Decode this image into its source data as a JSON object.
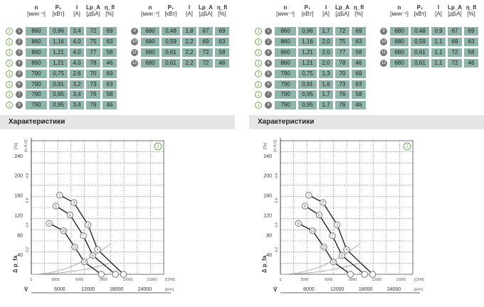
{
  "headers": {
    "n": "n",
    "n_unit": "[мин⁻¹]",
    "p1": "P₁",
    "p1_unit": "[кВт]",
    "i": "I",
    "i_unit": "[А]",
    "lpa": "Lp_A",
    "lpa_unit": "[дБА]",
    "eta": "η_fl",
    "eta_unit": "[%]"
  },
  "section_title": "Характеристики",
  "tables": {
    "left": {
      "rows_a": [
        {
          "m": "1",
          "k": "1",
          "n": "860",
          "p": "0,96",
          "i": "3,4",
          "l": "72",
          "e": "69"
        },
        {
          "m": "1",
          "k": "2",
          "n": "860",
          "p": "1,16",
          "i": "4,0",
          "l": "75",
          "e": "63"
        },
        {
          "m": "1",
          "k": "3",
          "n": "860",
          "p": "1,21",
          "i": "4,0",
          "l": "77",
          "e": "58"
        },
        {
          "m": "1",
          "k": "4",
          "n": "860",
          "p": "1,21",
          "i": "4,0",
          "l": "78",
          "e": "46"
        },
        {
          "m": "1",
          "k": "5",
          "n": "790",
          "p": "0,75",
          "i": "2,6",
          "l": "70",
          "e": "69"
        },
        {
          "m": "1",
          "k": "6",
          "n": "790",
          "p": "0,91",
          "i": "3,2",
          "l": "73",
          "e": "63"
        },
        {
          "m": "1",
          "k": "7",
          "n": "790",
          "p": "0,95",
          "i": "3,4",
          "l": "76",
          "e": "58"
        },
        {
          "m": "1",
          "k": "8",
          "n": "790",
          "p": "0,95",
          "i": "3,4",
          "l": "76",
          "e": "46"
        }
      ],
      "rows_b": [
        {
          "k": "9",
          "n": "680",
          "p": "0,48",
          "i": "1,8",
          "l": "67",
          "e": "69"
        },
        {
          "k": "10",
          "n": "680",
          "p": "0,59",
          "i": "2,2",
          "l": "69",
          "e": "63"
        },
        {
          "k": "11",
          "n": "680",
          "p": "0,61",
          "i": "2,2",
          "l": "72",
          "e": "58"
        },
        {
          "k": "12",
          "n": "680",
          "p": "0,61",
          "i": "2,2",
          "l": "72",
          "e": "46"
        }
      ]
    },
    "right": {
      "rows_a": [
        {
          "m": "2",
          "k": "1",
          "n": "860",
          "p": "0,96",
          "i": "1,7",
          "l": "72",
          "e": "69"
        },
        {
          "m": "2",
          "k": "2",
          "n": "860",
          "p": "1,16",
          "i": "2,0",
          "l": "75",
          "e": "63"
        },
        {
          "m": "2",
          "k": "3",
          "n": "860",
          "p": "1,21",
          "i": "2,0",
          "l": "77",
          "e": "58"
        },
        {
          "m": "2",
          "k": "4",
          "n": "860",
          "p": "1,21",
          "i": "2,0",
          "l": "78",
          "e": "46"
        },
        {
          "m": "2",
          "k": "5",
          "n": "790",
          "p": "0,75",
          "i": "1,3",
          "l": "70",
          "e": "69"
        },
        {
          "m": "2",
          "k": "6",
          "n": "790",
          "p": "0,91",
          "i": "1,6",
          "l": "73",
          "e": "63"
        },
        {
          "m": "2",
          "k": "7",
          "n": "790",
          "p": "0,95",
          "i": "1,7",
          "l": "76",
          "e": "58"
        },
        {
          "m": "2",
          "k": "8",
          "n": "790",
          "p": "0,95",
          "i": "1,7",
          "l": "76",
          "e": "46"
        }
      ],
      "rows_b": [
        {
          "k": "9",
          "n": "680",
          "p": "0,48",
          "i": "0,9",
          "l": "67",
          "e": "69"
        },
        {
          "k": "10",
          "n": "680",
          "p": "0,59",
          "i": "1,1",
          "l": "69",
          "e": "63"
        },
        {
          "k": "11",
          "n": "680",
          "p": "0,61",
          "i": "1,1",
          "l": "72",
          "e": "58"
        },
        {
          "k": "12",
          "n": "680",
          "p": "0,61",
          "i": "1,1",
          "l": "72",
          "e": "46"
        }
      ]
    }
  },
  "chart_data": [
    {
      "type": "line",
      "marker": "1",
      "y_label": "Δ p_fa",
      "y_unit": "[Па]",
      "y_unit_alt": "[in H₂O]",
      "x_label": "V̇",
      "x_unit": "[м³/ч]",
      "x_unit_alt": "[CFM]",
      "y_ticks": [
        "40",
        "80",
        "120",
        "160",
        "200",
        "240"
      ],
      "y_alt_ticks": [
        "0,2",
        "0,4",
        "0,6",
        "0,8"
      ],
      "x_ticks": [
        "6000",
        "12000",
        "18000",
        "24000"
      ],
      "x_alt_ticks": [
        "0",
        "3000",
        "6000",
        "9000",
        "12000",
        "15000"
      ],
      "xlim": [
        0,
        28000
      ],
      "ylim": [
        0,
        270
      ],
      "series": [
        {
          "points": [
            [
              6000,
              160
            ],
            [
              9000,
              145
            ],
            [
              12000,
              100
            ],
            [
              14000,
              50
            ],
            [
              19500,
              0
            ]
          ],
          "labels": [
            "1",
            "2",
            "3",
            "4"
          ]
        },
        {
          "points": [
            [
              5200,
              138
            ],
            [
              8200,
              120
            ],
            [
              11000,
              78
            ],
            [
              13000,
              38
            ],
            [
              17800,
              0
            ]
          ],
          "labels": [
            "5",
            "6",
            "7",
            "8"
          ]
        },
        {
          "points": [
            [
              3800,
              103
            ],
            [
              6800,
              88
            ],
            [
              9200,
              55
            ],
            [
              11200,
              25
            ],
            [
              14800,
              0
            ]
          ],
          "labels": [
            "9",
            "10",
            "11",
            "12"
          ]
        }
      ]
    },
    {
      "type": "line",
      "marker": "2",
      "y_label": "Δ p_fa",
      "y_unit": "[Па]",
      "y_unit_alt": "[in H₂O]",
      "x_label": "V̇",
      "x_unit": "[м³/ч]",
      "x_unit_alt": "[CFM]",
      "y_ticks": [
        "40",
        "80",
        "120",
        "160",
        "200",
        "240"
      ],
      "y_alt_ticks": [
        "0,2",
        "0,4",
        "0,6",
        "0,8"
      ],
      "x_ticks": [
        "6000",
        "12000",
        "18000",
        "24000"
      ],
      "x_alt_ticks": [
        "0",
        "3000",
        "6000",
        "9000",
        "12000",
        "15000"
      ],
      "xlim": [
        0,
        28000
      ],
      "ylim": [
        0,
        270
      ],
      "series": [
        {
          "points": [
            [
              6000,
              160
            ],
            [
              9000,
              145
            ],
            [
              12000,
              100
            ],
            [
              14000,
              50
            ],
            [
              19500,
              0
            ]
          ],
          "labels": [
            "1",
            "2",
            "3",
            "4"
          ]
        },
        {
          "points": [
            [
              5200,
              138
            ],
            [
              8200,
              120
            ],
            [
              11000,
              78
            ],
            [
              13000,
              38
            ],
            [
              17800,
              0
            ]
          ],
          "labels": [
            "5",
            "6",
            "7",
            "8"
          ]
        },
        {
          "points": [
            [
              3800,
              103
            ],
            [
              6800,
              88
            ],
            [
              9200,
              55
            ],
            [
              11200,
              25
            ],
            [
              14800,
              0
            ]
          ],
          "labels": [
            "9",
            "10",
            "11",
            "12"
          ]
        }
      ]
    }
  ]
}
